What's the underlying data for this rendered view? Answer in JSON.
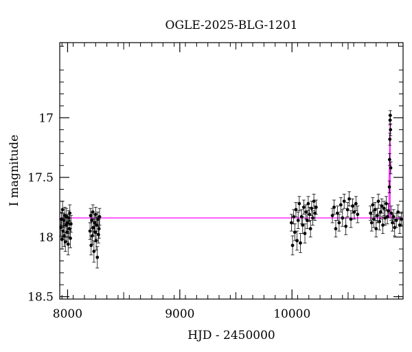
{
  "chart_data": {
    "type": "scatter",
    "title": "OGLE-2025-BLG-1201",
    "xlabel": "HJD - 2450000",
    "ylabel": "I magnitude",
    "xlim": [
      7930,
      10990
    ],
    "ylim": [
      18.52,
      16.37
    ],
    "y_inverted": true,
    "x_ticks": [
      8000,
      9000,
      10000
    ],
    "x_tick_labels": [
      "8000",
      "9000",
      "10000"
    ],
    "y_ticks": [
      17,
      17.5,
      18,
      18.5
    ],
    "y_tick_labels": [
      "17",
      "17.5",
      "18",
      "18.5"
    ],
    "grid": false,
    "colors": {
      "points": "#000000",
      "model": "#ff00ff"
    },
    "model": {
      "baseline_mag": 17.84,
      "peak_time": 10875,
      "peak_mag": 17.0,
      "segments": [
        {
          "x": [
            7930,
            10865
          ],
          "y": [
            17.84,
            17.84
          ]
        },
        {
          "x": [
            10865,
            10865
          ],
          "y": [
            17.84,
            17.57
          ]
        },
        {
          "x": [
            10865,
            10875
          ],
          "y": [
            17.57,
            17.0
          ]
        },
        {
          "x": [
            10875,
            10875
          ],
          "y": [
            17.0,
            17.84
          ]
        },
        {
          "x": [
            10875,
            10990
          ],
          "y": [
            17.84,
            17.84
          ]
        }
      ]
    },
    "series": [
      {
        "x": [
          7940,
          7945,
          7950,
          7955,
          7960,
          7965,
          7970,
          7975,
          7980,
          7985,
          7990,
          7995,
          8000,
          8005,
          8010,
          8015,
          8020,
          8025,
          8030
        ],
        "y": [
          17.92,
          17.85,
          18.02,
          17.77,
          17.95,
          17.86,
          17.99,
          17.82,
          18.04,
          17.9,
          17.83,
          17.96,
          17.88,
          18.06,
          17.84,
          17.93,
          17.8,
          18.01,
          17.89
        ],
        "err": [
          0.07,
          0.06,
          0.08,
          0.07,
          0.07,
          0.06,
          0.09,
          0.07,
          0.08,
          0.06,
          0.07,
          0.08,
          0.07,
          0.09,
          0.06,
          0.07,
          0.07,
          0.08,
          0.07
        ]
      },
      {
        "x": [
          8200,
          8205,
          8210,
          8215,
          8220,
          8225,
          8230,
          8235,
          8240,
          8245,
          8250,
          8255,
          8260,
          8265,
          8270,
          8275,
          8280,
          8285
        ],
        "y": [
          17.95,
          17.82,
          18.07,
          17.86,
          17.99,
          17.79,
          17.92,
          18.12,
          17.88,
          17.96,
          17.81,
          18.03,
          17.9,
          18.17,
          17.85,
          17.98,
          17.93,
          17.83
        ],
        "err": [
          0.07,
          0.06,
          0.08,
          0.07,
          0.07,
          0.06,
          0.07,
          0.09,
          0.07,
          0.08,
          0.06,
          0.08,
          0.07,
          0.09,
          0.06,
          0.07,
          0.08,
          0.07
        ]
      },
      {
        "x": [
          9995,
          10005,
          10015,
          10025,
          10035,
          10045,
          10055,
          10065,
          10075,
          10085,
          10095,
          10105,
          10115,
          10125,
          10135,
          10145,
          10155,
          10165,
          10175,
          10185,
          10195,
          10205,
          10215
        ],
        "y": [
          17.88,
          18.07,
          17.83,
          17.96,
          17.77,
          18.03,
          17.86,
          17.72,
          18.05,
          17.83,
          17.9,
          17.75,
          17.97,
          17.79,
          17.86,
          17.72,
          17.81,
          17.93,
          17.76,
          17.84,
          17.7,
          17.8,
          17.75
        ],
        "err": [
          0.07,
          0.08,
          0.06,
          0.07,
          0.06,
          0.08,
          0.07,
          0.06,
          0.08,
          0.06,
          0.07,
          0.06,
          0.08,
          0.06,
          0.07,
          0.06,
          0.06,
          0.07,
          0.06,
          0.06,
          0.06,
          0.06,
          0.06
        ]
      },
      {
        "x": [
          10360,
          10375,
          10390,
          10405,
          10420,
          10435,
          10450,
          10465,
          10480,
          10495,
          10510,
          10525,
          10540,
          10555,
          10570,
          10585
        ],
        "y": [
          17.82,
          17.75,
          17.93,
          17.8,
          17.88,
          17.73,
          17.84,
          17.7,
          17.91,
          17.77,
          17.68,
          17.85,
          17.74,
          17.79,
          17.72,
          17.81
        ],
        "err": [
          0.06,
          0.06,
          0.07,
          0.06,
          0.07,
          0.06,
          0.07,
          0.06,
          0.07,
          0.06,
          0.06,
          0.07,
          0.06,
          0.06,
          0.06,
          0.07
        ]
      },
      {
        "x": [
          10700,
          10710,
          10720,
          10730,
          10740,
          10750,
          10760,
          10770,
          10780,
          10790,
          10800,
          10810,
          10820,
          10830,
          10840,
          10850,
          10860,
          10868,
          10870,
          10872,
          10874,
          10876,
          10878,
          10880,
          10885,
          10895,
          10905,
          10915,
          10930,
          10945,
          10960,
          10975
        ],
        "y": [
          17.8,
          17.88,
          17.73,
          17.85,
          17.77,
          17.93,
          17.82,
          17.7,
          17.87,
          17.79,
          17.74,
          17.9,
          17.76,
          17.84,
          17.72,
          17.83,
          17.78,
          17.58,
          17.35,
          17.18,
          17.02,
          16.98,
          17.1,
          17.42,
          17.8,
          17.88,
          17.83,
          17.92,
          17.86,
          17.79,
          17.9,
          17.85
        ],
        "err": [
          0.06,
          0.07,
          0.06,
          0.07,
          0.06,
          0.07,
          0.06,
          0.06,
          0.07,
          0.06,
          0.06,
          0.07,
          0.06,
          0.06,
          0.06,
          0.06,
          0.06,
          0.05,
          0.05,
          0.05,
          0.04,
          0.04,
          0.05,
          0.05,
          0.06,
          0.07,
          0.06,
          0.07,
          0.06,
          0.06,
          0.07,
          0.06
        ]
      }
    ]
  }
}
